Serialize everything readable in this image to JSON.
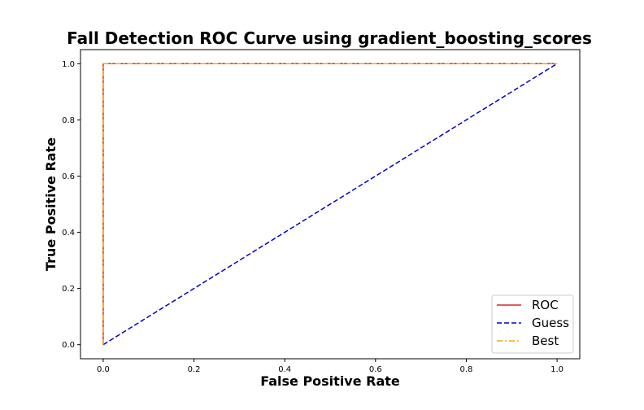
{
  "chart_data": {
    "type": "line",
    "title": "Fall Detection ROC Curve using gradient_boosting_scores",
    "xlabel": "False Positive Rate",
    "ylabel": "True Positive Rate",
    "xlim": [
      -0.05,
      1.05
    ],
    "ylim": [
      -0.05,
      1.05
    ],
    "xticks": [
      "0.0",
      "0.2",
      "0.4",
      "0.6",
      "0.8",
      "1.0"
    ],
    "yticks": [
      "0.0",
      "0.2",
      "0.4",
      "0.6",
      "0.8",
      "1.0"
    ],
    "grid": false,
    "legend_position": "bottom-right",
    "series": [
      {
        "name": "ROC",
        "color": "#d62728",
        "dash": "solid",
        "x": [
          0.0,
          0.0,
          1.0
        ],
        "y": [
          0.0,
          1.0,
          1.0
        ]
      },
      {
        "name": "Guess",
        "color": "#0000cc",
        "dash": "dashed",
        "x": [
          0.0,
          1.0
        ],
        "y": [
          0.0,
          1.0
        ]
      },
      {
        "name": "Best",
        "color": "#ffa500",
        "dash": "dashdot",
        "x": [
          0.0,
          0.0,
          1.0
        ],
        "y": [
          0.0,
          1.0,
          1.0
        ]
      }
    ]
  }
}
